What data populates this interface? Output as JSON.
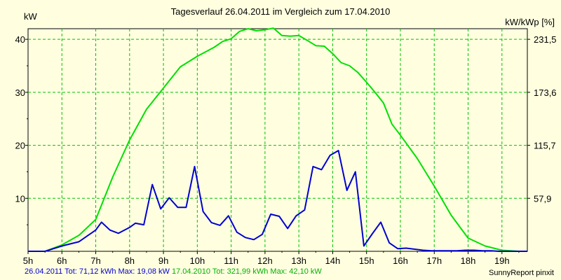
{
  "chart_data": {
    "type": "line",
    "title": "Tagesverlauf 26.04.2011 im Vergleich zum 17.04.2010",
    "ylabel_left": "kW",
    "ylabel_right": "kW/kWp [%]",
    "x_unit": "h",
    "xlim": [
      5,
      19.75
    ],
    "ylim": [
      0,
      42
    ],
    "x_ticks": [
      "5h",
      "6h",
      "7h",
      "8h",
      "9h",
      "10h",
      "11h",
      "12h",
      "13h",
      "14h",
      "15h",
      "16h",
      "17h",
      "18h",
      "19h"
    ],
    "y_ticks": [
      "10",
      "20",
      "30",
      "40"
    ],
    "y2_ticks": [
      "57,9",
      "115,7",
      "173,6",
      "231,5"
    ],
    "grid": true,
    "series": [
      {
        "name": "26.04.2011",
        "color": "#0000d0",
        "x": [
          5,
          5.5,
          6,
          6.5,
          7,
          7.17,
          7.42,
          7.67,
          8,
          8.17,
          8.42,
          8.67,
          8.92,
          9.17,
          9.42,
          9.67,
          9.92,
          10.17,
          10.42,
          10.67,
          10.92,
          11.17,
          11.42,
          11.67,
          11.92,
          12.17,
          12.42,
          12.67,
          12.92,
          13.17,
          13.42,
          13.67,
          13.92,
          14.17,
          14.42,
          14.67,
          14.92,
          15.17,
          15.42,
          15.67,
          15.92,
          16.17,
          16.42,
          16.67,
          16.92,
          17.17,
          17.42,
          17.67,
          17.92,
          18.17,
          18.42,
          18.67,
          18.92,
          19.17,
          19.42,
          19.75
        ],
        "values": [
          0,
          0,
          1,
          1.8,
          4,
          5.5,
          4,
          3.4,
          4.5,
          5.3,
          5,
          12.6,
          8,
          10.1,
          8.3,
          8.3,
          16,
          7.5,
          5.4,
          4.9,
          6.7,
          3.6,
          2.6,
          2.2,
          3.2,
          7,
          6.6,
          4.3,
          6.7,
          7.8,
          16,
          15.4,
          18.1,
          19,
          11.5,
          15,
          1,
          3.3,
          5.5,
          1.6,
          0.5,
          0.6,
          0.4,
          0.2,
          0.1,
          0.1,
          0.1,
          0.1,
          0.2,
          0.2,
          0.1,
          0.1,
          0,
          0,
          0,
          0
        ]
      },
      {
        "name": "17.04.2010",
        "color": "#00e000",
        "x": [
          5.5,
          6,
          6.5,
          7,
          7.5,
          8,
          8.5,
          9,
          9.5,
          10,
          10.5,
          10.75,
          11,
          11.25,
          11.5,
          11.75,
          12,
          12.25,
          12.5,
          12.75,
          13,
          13.25,
          13.5,
          13.75,
          14,
          14.25,
          14.5,
          14.75,
          15,
          15.25,
          15.5,
          15.75,
          16,
          16.5,
          17,
          17.5,
          18,
          18.5,
          19,
          19.5,
          19.75
        ],
        "values": [
          0,
          1.2,
          3,
          6,
          14,
          21,
          26.8,
          30.8,
          34.8,
          36.8,
          38.5,
          39.6,
          40.1,
          41.5,
          42,
          41.6,
          41.8,
          42.1,
          40.7,
          40.6,
          40.7,
          39.8,
          38.8,
          38.7,
          37.3,
          35.6,
          35,
          33.7,
          31.9,
          30,
          28,
          24,
          21.9,
          17.5,
          12.3,
          6.8,
          2.5,
          1,
          0.2,
          0,
          0
        ]
      }
    ]
  },
  "footer": {
    "series1_text": "26.04.2011 Tot: 71,12 kWh Max: 19,08 kW",
    "series2_text": "17.04.2010 Tot: 321,99 kWh Max: 42,10 kW",
    "credit": "SunnyReport pinxit"
  }
}
